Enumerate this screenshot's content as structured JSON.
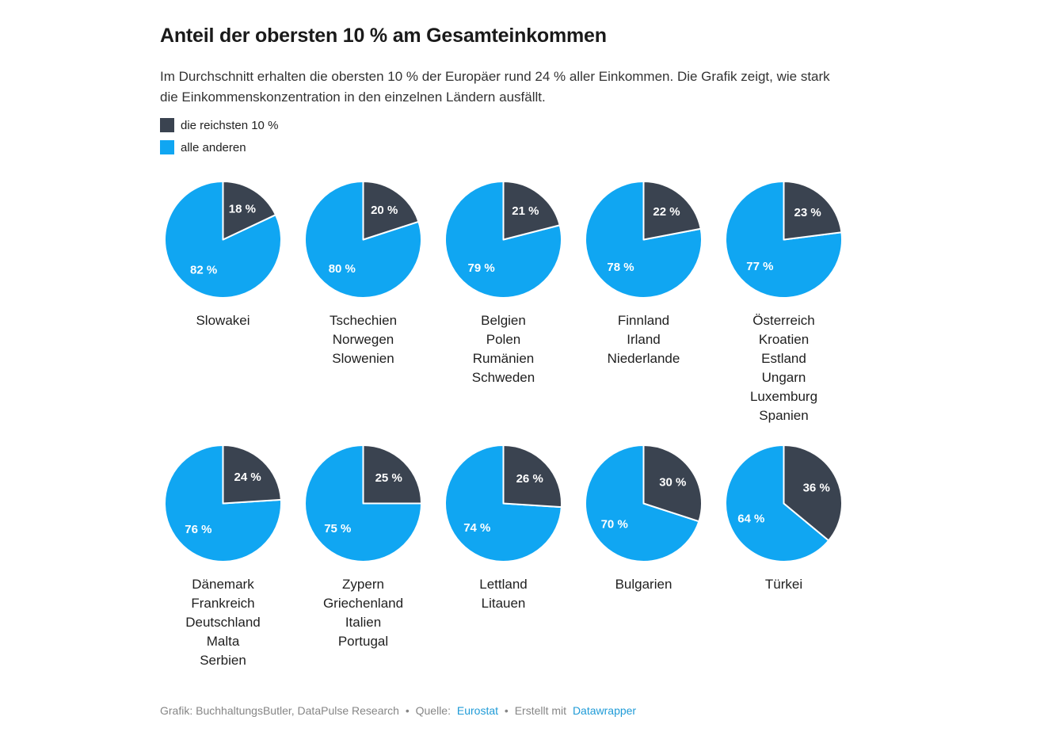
{
  "header": {
    "title": "Anteil der obersten 10 % am Gesamteinkommen",
    "subtitle": "Im Durchschnitt erhalten die obersten 10 % der Europäer rund 24 % aller Einkommen. Die Grafik zeigt, wie stark die Einkommenskonzentration in den einzelnen Ländern ausfällt."
  },
  "chart_data": {
    "type": "pie",
    "title": "Anteil der obersten 10 % am Gesamteinkommen",
    "layout": {
      "rows": 2,
      "cols": 5,
      "legend_position": "top-left",
      "grid": false
    },
    "colors": {
      "top10": "#3a4350",
      "others": "#10a6f2",
      "label_text": "#ffffff"
    },
    "value_suffix": " %",
    "legend": [
      {
        "key": "top10",
        "label": "die reichsten 10 %"
      },
      {
        "key": "others",
        "label": "alle anderen"
      }
    ],
    "pies": [
      {
        "countries": [
          "Slowakei"
        ],
        "top10": 18,
        "others": 82
      },
      {
        "countries": [
          "Tschechien",
          "Norwegen",
          "Slowenien"
        ],
        "top10": 20,
        "others": 80
      },
      {
        "countries": [
          "Belgien",
          "Polen",
          "Rumänien",
          "Schweden"
        ],
        "top10": 21,
        "others": 79
      },
      {
        "countries": [
          "Finnland",
          "Irland",
          "Niederlande"
        ],
        "top10": 22,
        "others": 78
      },
      {
        "countries": [
          "Österreich",
          "Kroatien",
          "Estland",
          "Ungarn",
          "Luxemburg",
          "Spanien"
        ],
        "top10": 23,
        "others": 77
      },
      {
        "countries": [
          "Dänemark",
          "Frankreich",
          "Deutschland",
          "Malta",
          "Serbien"
        ],
        "top10": 24,
        "others": 76
      },
      {
        "countries": [
          "Zypern",
          "Griechenland",
          "Italien",
          "Portugal"
        ],
        "top10": 25,
        "others": 75
      },
      {
        "countries": [
          "Lettland",
          "Litauen"
        ],
        "top10": 26,
        "others": 74
      },
      {
        "countries": [
          "Bulgarien"
        ],
        "top10": 30,
        "others": 70
      },
      {
        "countries": [
          "Türkei"
        ],
        "top10": 36,
        "others": 64
      }
    ]
  },
  "footer": {
    "credit": "Grafik: BuchhaltungsButler, DataPulse Research",
    "separator": "•",
    "source_label": "Quelle:",
    "source_link": "Eurostat",
    "made_with": "Erstellt mit",
    "tool_link": "Datawrapper",
    "link_color": "#1f9bd7"
  }
}
